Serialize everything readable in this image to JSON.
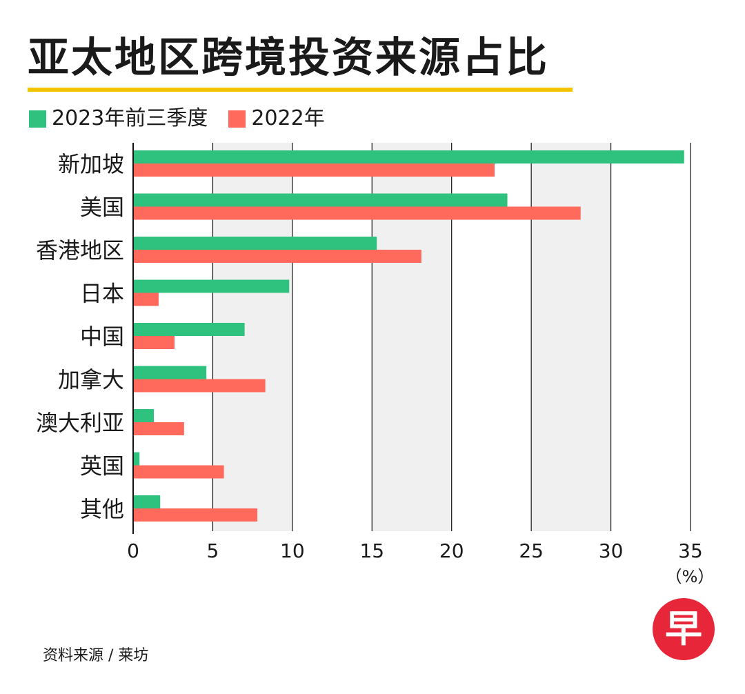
{
  "title": "亚太地区跨境投资来源占比",
  "legend": [
    {
      "label": "2023年前三季度",
      "color": "#2ec27e"
    },
    {
      "label": "2022年",
      "color": "#ff6a5c"
    }
  ],
  "source": "资料来源 / 莱坊",
  "logo": {
    "text": "早",
    "icon": "zaobao-logo-icon",
    "color": "#e8263a"
  },
  "chart_data": {
    "type": "bar",
    "orientation": "horizontal",
    "categories": [
      "新加坡",
      "美国",
      "香港地区",
      "日本",
      "中国",
      "加拿大",
      "澳大利亚",
      "英国",
      "其他"
    ],
    "series": [
      {
        "name": "2023年前三季度",
        "color": "#2ec27e",
        "values": [
          34.6,
          23.5,
          15.3,
          9.8,
          7.0,
          4.6,
          1.3,
          0.4,
          1.7
        ]
      },
      {
        "name": "2022年",
        "color": "#ff6a5c",
        "values": [
          22.7,
          28.1,
          18.1,
          1.6,
          2.6,
          8.3,
          3.2,
          5.7,
          7.8
        ]
      }
    ],
    "xlim": [
      0,
      35
    ],
    "xticks": [
      "0",
      "5",
      "10",
      "15",
      "20",
      "25",
      "30",
      "35"
    ],
    "unit": "（%）",
    "grid": "vertical lines with alternating shaded bands",
    "legend_position": "top-left"
  }
}
